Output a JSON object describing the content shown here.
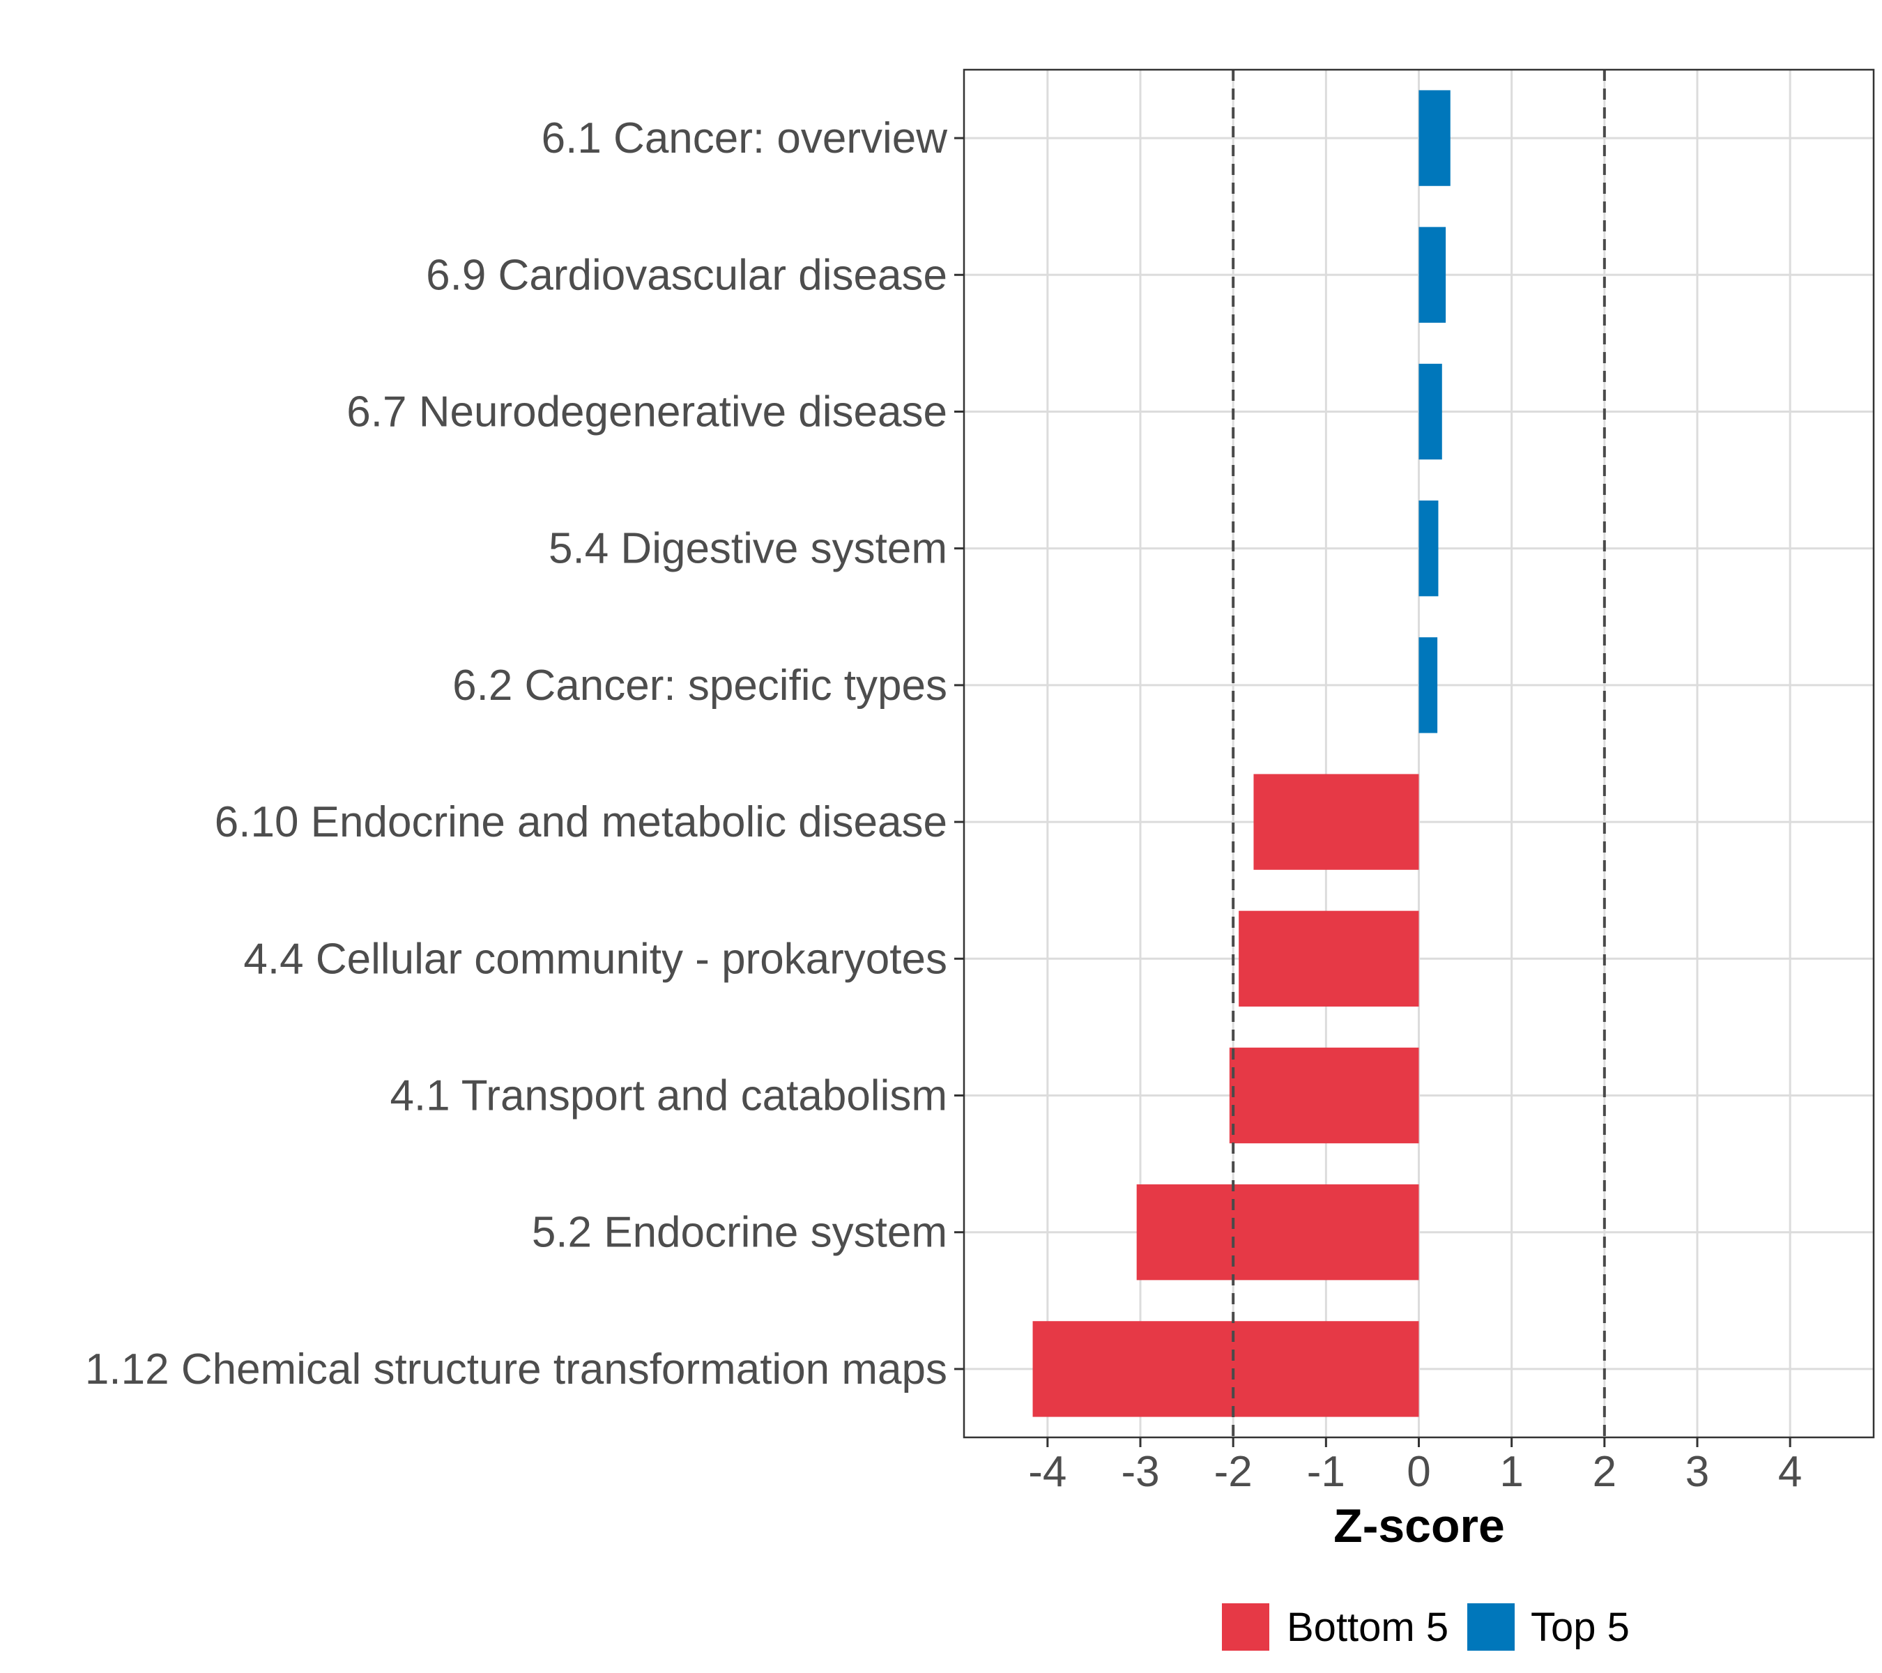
{
  "chart_data": {
    "type": "bar",
    "orientation": "horizontal",
    "title": "",
    "xlabel": "Z-score",
    "ylabel": "",
    "xlim": [
      -4.9,
      4.9
    ],
    "xticks": [
      -4,
      -3,
      -2,
      -1,
      0,
      1,
      2,
      3,
      4
    ],
    "xtick_labels": [
      "-4",
      "-3",
      "-2",
      "-1",
      "0",
      "1",
      "2",
      "3",
      "4"
    ],
    "grid": true,
    "reference_lines": [
      -2,
      2
    ],
    "categories": [
      "6.1 Cancer: overview",
      "6.9 Cardiovascular disease",
      "6.7 Neurodegenerative disease",
      "5.4 Digestive system",
      "6.2 Cancer: specific types",
      "6.10 Endocrine and metabolic disease",
      "4.4 Cellular community - prokaryotes",
      "4.1 Transport and catabolism",
      "5.2 Endocrine system",
      "1.12 Chemical structure transformation maps"
    ],
    "values": [
      0.34,
      0.29,
      0.25,
      0.21,
      0.2,
      -1.78,
      -1.94,
      -2.04,
      -3.04,
      -4.16
    ],
    "groups": [
      "Top 5",
      "Top 5",
      "Top 5",
      "Top 5",
      "Top 5",
      "Bottom 5",
      "Bottom 5",
      "Bottom 5",
      "Bottom 5",
      "Bottom 5"
    ],
    "legend": [
      {
        "name": "Bottom 5",
        "color": "#e63946"
      },
      {
        "name": "Top 5",
        "color": "#0077bb"
      }
    ],
    "legend_position": "bottom"
  }
}
